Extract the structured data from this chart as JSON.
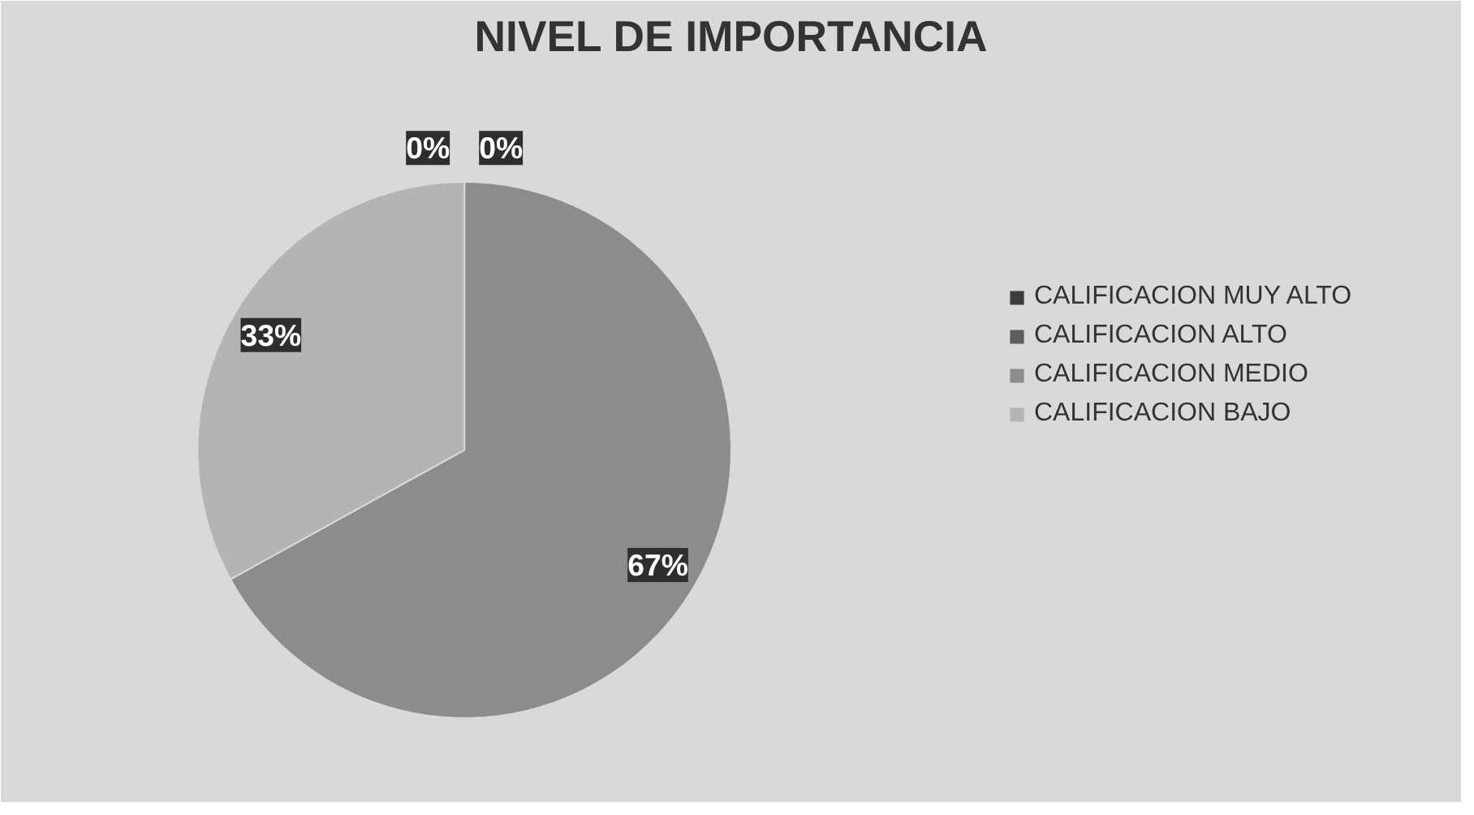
{
  "chart_data": {
    "type": "pie",
    "title": "NIVEL DE IMPORTANCIA",
    "categories": [
      "CALIFICACION MUY ALTO",
      "CALIFICACION ALTO",
      "CALIFICACION MEDIO",
      "CALIFICACION BAJO"
    ],
    "values": [
      0,
      0,
      67,
      33
    ],
    "value_labels": [
      "0%",
      "0%",
      "67%",
      "33%"
    ],
    "colors": [
      "#3c3c3c",
      "#5e5e5e",
      "#8c8c8c",
      "#b4b4b4"
    ],
    "legend": "right"
  }
}
